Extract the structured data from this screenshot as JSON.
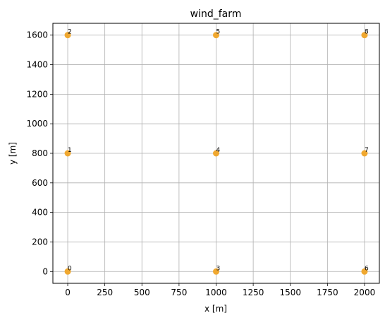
{
  "chart_data": {
    "type": "scatter",
    "title": "wind_farm",
    "xlabel": "x [m]",
    "ylabel": "y [m]",
    "xlim": [
      -100,
      2100
    ],
    "ylim": [
      -80,
      1680
    ],
    "xticks": [
      0,
      250,
      500,
      750,
      1000,
      1250,
      1500,
      1750,
      2000
    ],
    "yticks": [
      0,
      200,
      400,
      600,
      800,
      1000,
      1200,
      1400,
      1600
    ],
    "grid": true,
    "marker_color": "#f0a830",
    "points": [
      {
        "label": "0",
        "x": 0,
        "y": 0
      },
      {
        "label": "1",
        "x": 0,
        "y": 800
      },
      {
        "label": "2",
        "x": 0,
        "y": 1600
      },
      {
        "label": "3",
        "x": 1000,
        "y": 0
      },
      {
        "label": "4",
        "x": 1000,
        "y": 800
      },
      {
        "label": "5",
        "x": 1000,
        "y": 1600
      },
      {
        "label": "6",
        "x": 2000,
        "y": 0
      },
      {
        "label": "7",
        "x": 2000,
        "y": 800
      },
      {
        "label": "8",
        "x": 2000,
        "y": 1600
      }
    ]
  }
}
